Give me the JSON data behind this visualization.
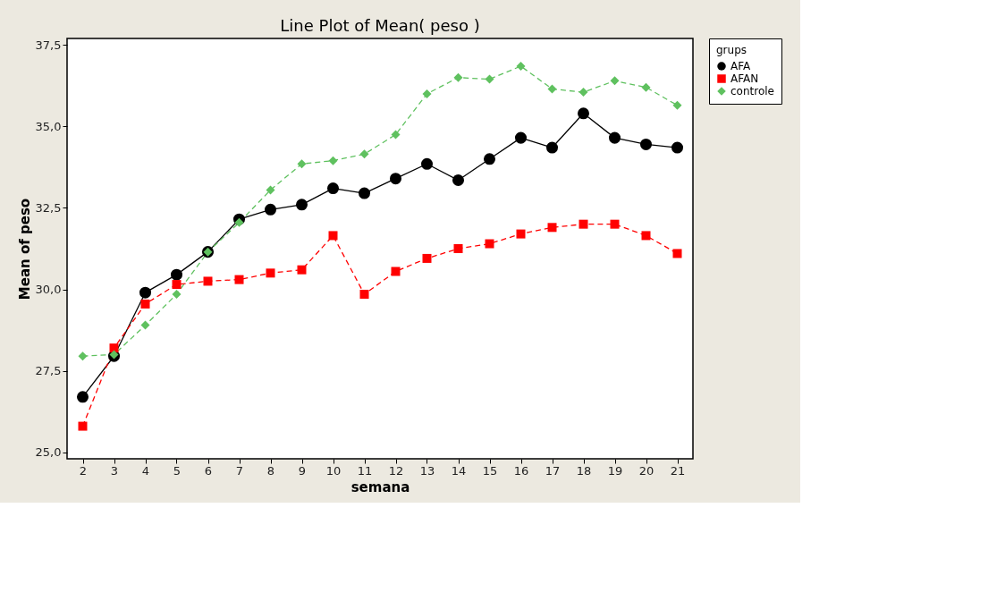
{
  "chart_data": {
    "type": "line",
    "title": "Line Plot of Mean( peso )",
    "xlabel": "semana",
    "ylabel": "Mean of peso",
    "legend_title": "grups",
    "x": [
      2,
      3,
      4,
      5,
      6,
      7,
      8,
      9,
      10,
      11,
      12,
      13,
      14,
      15,
      16,
      17,
      18,
      19,
      20,
      21
    ],
    "series": [
      {
        "name": "AFA",
        "color": "#000000",
        "marker": "circle",
        "line_style": "solid",
        "values": [
          26.7,
          27.95,
          29.9,
          30.45,
          31.15,
          32.15,
          32.45,
          32.6,
          33.1,
          32.95,
          33.4,
          33.85,
          33.35,
          34.0,
          34.65,
          34.35,
          35.4,
          34.65,
          34.45,
          34.35
        ]
      },
      {
        "name": "AFAN",
        "color": "#ff0000",
        "marker": "square",
        "line_style": "dashed",
        "values": [
          25.8,
          28.2,
          29.55,
          30.15,
          30.25,
          30.3,
          30.5,
          30.6,
          31.65,
          29.85,
          30.55,
          30.95,
          31.25,
          31.4,
          31.7,
          31.9,
          32.0,
          32.0,
          31.65,
          31.1
        ]
      },
      {
        "name": "controle",
        "color": "#5fc15f",
        "marker": "diamond",
        "line_style": "dashed",
        "values": [
          27.95,
          28.0,
          28.9,
          29.85,
          31.15,
          32.05,
          33.05,
          33.85,
          33.95,
          34.15,
          34.75,
          36.0,
          36.5,
          36.45,
          36.85,
          36.15,
          36.05,
          36.4,
          36.2,
          35.65
        ]
      }
    ],
    "xlim": [
      1.5,
      21.5
    ],
    "xticks": [
      2,
      3,
      4,
      5,
      6,
      7,
      8,
      9,
      10,
      11,
      12,
      13,
      14,
      15,
      16,
      17,
      18,
      19,
      20,
      21
    ],
    "ylim": [
      24.8,
      37.7
    ],
    "yticks": [
      {
        "value": 25,
        "label": "25,0"
      },
      {
        "value": 27.5,
        "label": "27,5"
      },
      {
        "value": 30,
        "label": "30,0"
      },
      {
        "value": 32.5,
        "label": "32,5"
      },
      {
        "value": 35,
        "label": "35,0"
      },
      {
        "value": 37.5,
        "label": "37,5"
      }
    ],
    "grid": false,
    "legend": "top right"
  }
}
